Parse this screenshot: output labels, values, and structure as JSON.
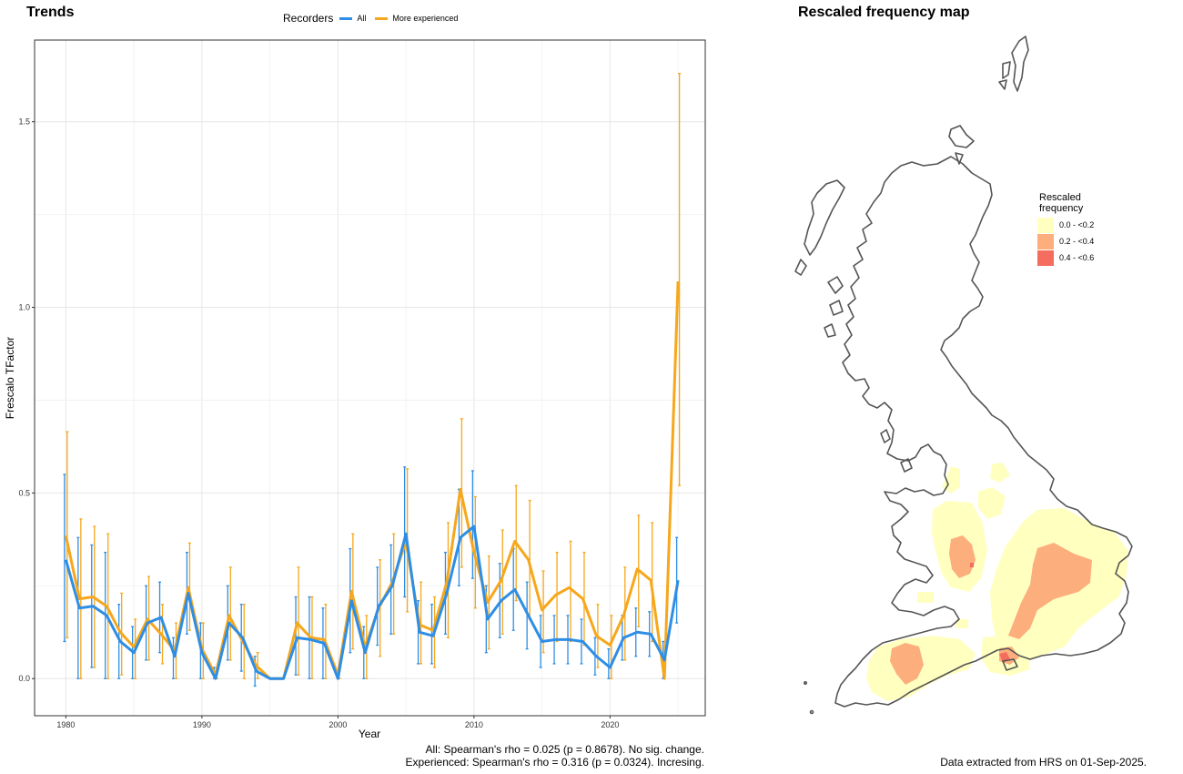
{
  "left_panel": {
    "title": "Trends",
    "caption_all": "All: Spearman's rho = 0.025 (p = 0.8678). No sig. change.",
    "caption_experienced": "Experienced: Spearman's rho = 0.316 (p = 0.0324). Incresing."
  },
  "right_panel": {
    "title": "Rescaled frequency map",
    "caption": "Data extracted from HRS on 01-Sep-2025.",
    "legend": {
      "title_line1": "Rescaled",
      "title_line2": "frequency",
      "items": [
        {
          "label": "0.0 - <0.2",
          "color": "#ffffc0"
        },
        {
          "label": "0.2 - <0.4",
          "color": "#fdae7d"
        },
        {
          "label": "0.4 - <0.6",
          "color": "#f46d5f"
        }
      ]
    }
  },
  "chart_data": {
    "type": "line",
    "title": "Trends",
    "xlabel": "Year",
    "ylabel": "Frescalo TFactor",
    "xlim": [
      1977.7,
      2027.0
    ],
    "ylim": [
      -0.1,
      1.72
    ],
    "xticks": [
      1980,
      1990,
      2000,
      2010,
      2020
    ],
    "yticks": [
      0.0,
      0.5,
      1.0,
      1.5
    ],
    "ytick_labels": [
      "0.0",
      "0.5",
      "1.0",
      "1.5"
    ],
    "grid": true,
    "legend_title": "Recorders",
    "legend_position": "top",
    "x": [
      1980,
      1981,
      1982,
      1983,
      1984,
      1985,
      1986,
      1987,
      1988,
      1989,
      1990,
      1991,
      1992,
      1993,
      1994,
      1995,
      1996,
      1997,
      1998,
      1999,
      2000,
      2001,
      2002,
      2003,
      2004,
      2005,
      2006,
      2007,
      2008,
      2009,
      2010,
      2011,
      2012,
      2013,
      2014,
      2015,
      2016,
      2017,
      2018,
      2019,
      2020,
      2021,
      2022,
      2023,
      2024,
      2025
    ],
    "series": [
      {
        "name": "All",
        "color": "#2e8ee6",
        "values": [
          0.32,
          0.19,
          0.195,
          0.17,
          0.1,
          0.07,
          0.15,
          0.165,
          0.06,
          0.23,
          0.07,
          0.0,
          0.15,
          0.11,
          0.02,
          0.0,
          0.0,
          0.11,
          0.105,
          0.095,
          0.0,
          0.21,
          0.07,
          0.195,
          0.25,
          0.39,
          0.125,
          0.115,
          0.23,
          0.38,
          0.41,
          0.16,
          0.21,
          0.24,
          0.17,
          0.1,
          0.105,
          0.105,
          0.1,
          0.06,
          0.03,
          0.11,
          0.125,
          0.12,
          0.05,
          0.265
        ],
        "lower": [
          0.1,
          0.0,
          0.03,
          0.0,
          0.0,
          0.0,
          0.05,
          0.07,
          0.0,
          0.12,
          0.0,
          0.0,
          0.05,
          0.02,
          -0.02,
          0.0,
          0.0,
          0.01,
          0.0,
          0.0,
          0.0,
          0.07,
          0.0,
          0.09,
          0.12,
          0.22,
          0.04,
          0.04,
          0.12,
          0.25,
          0.27,
          0.07,
          0.11,
          0.13,
          0.08,
          0.03,
          0.04,
          0.04,
          0.04,
          0.01,
          0.0,
          0.05,
          0.06,
          0.06,
          0.0,
          0.15
        ],
        "upper": [
          0.55,
          0.38,
          0.36,
          0.34,
          0.2,
          0.14,
          0.25,
          0.26,
          0.11,
          0.34,
          0.15,
          0.03,
          0.25,
          0.2,
          0.06,
          0.0,
          0.0,
          0.22,
          0.22,
          0.19,
          0.0,
          0.35,
          0.14,
          0.3,
          0.36,
          0.57,
          0.21,
          0.2,
          0.34,
          0.51,
          0.56,
          0.25,
          0.31,
          0.35,
          0.26,
          0.17,
          0.17,
          0.17,
          0.16,
          0.11,
          0.08,
          0.17,
          0.19,
          0.18,
          0.1,
          0.38
        ]
      },
      {
        "name": "More experienced",
        "color": "#f6a71c",
        "values": [
          0.385,
          0.215,
          0.22,
          0.195,
          0.125,
          0.085,
          0.16,
          0.12,
          0.075,
          0.245,
          0.08,
          0.01,
          0.17,
          0.1,
          0.035,
          0.0,
          0.0,
          0.15,
          0.11,
          0.105,
          0.01,
          0.235,
          0.085,
          0.19,
          0.26,
          0.37,
          0.145,
          0.13,
          0.26,
          0.51,
          0.34,
          0.205,
          0.265,
          0.37,
          0.32,
          0.185,
          0.225,
          0.245,
          0.215,
          0.115,
          0.09,
          0.17,
          0.295,
          0.265,
          0.0,
          1.07
        ],
        "lower": [
          0.11,
          0.0,
          0.03,
          0.0,
          0.01,
          0.0,
          0.05,
          0.04,
          0.0,
          0.13,
          0.0,
          0.0,
          0.05,
          0.0,
          0.0,
          0.0,
          0.0,
          0.01,
          0.0,
          0.0,
          0.0,
          0.08,
          0.0,
          0.06,
          0.12,
          0.18,
          0.04,
          0.03,
          0.11,
          0.3,
          0.19,
          0.08,
          0.12,
          0.21,
          0.16,
          0.07,
          0.1,
          0.1,
          0.09,
          0.03,
          0.0,
          0.05,
          0.14,
          0.1,
          0.0,
          0.52
        ],
        "upper": [
          0.665,
          0.43,
          0.41,
          0.39,
          0.23,
          0.16,
          0.275,
          0.2,
          0.15,
          0.365,
          0.15,
          0.02,
          0.3,
          0.2,
          0.07,
          0.0,
          0.0,
          0.3,
          0.22,
          0.2,
          0.02,
          0.39,
          0.17,
          0.32,
          0.39,
          0.565,
          0.26,
          0.22,
          0.42,
          0.7,
          0.49,
          0.33,
          0.4,
          0.52,
          0.48,
          0.29,
          0.34,
          0.37,
          0.34,
          0.2,
          0.17,
          0.3,
          0.44,
          0.42,
          0.0,
          1.63
        ]
      }
    ]
  }
}
